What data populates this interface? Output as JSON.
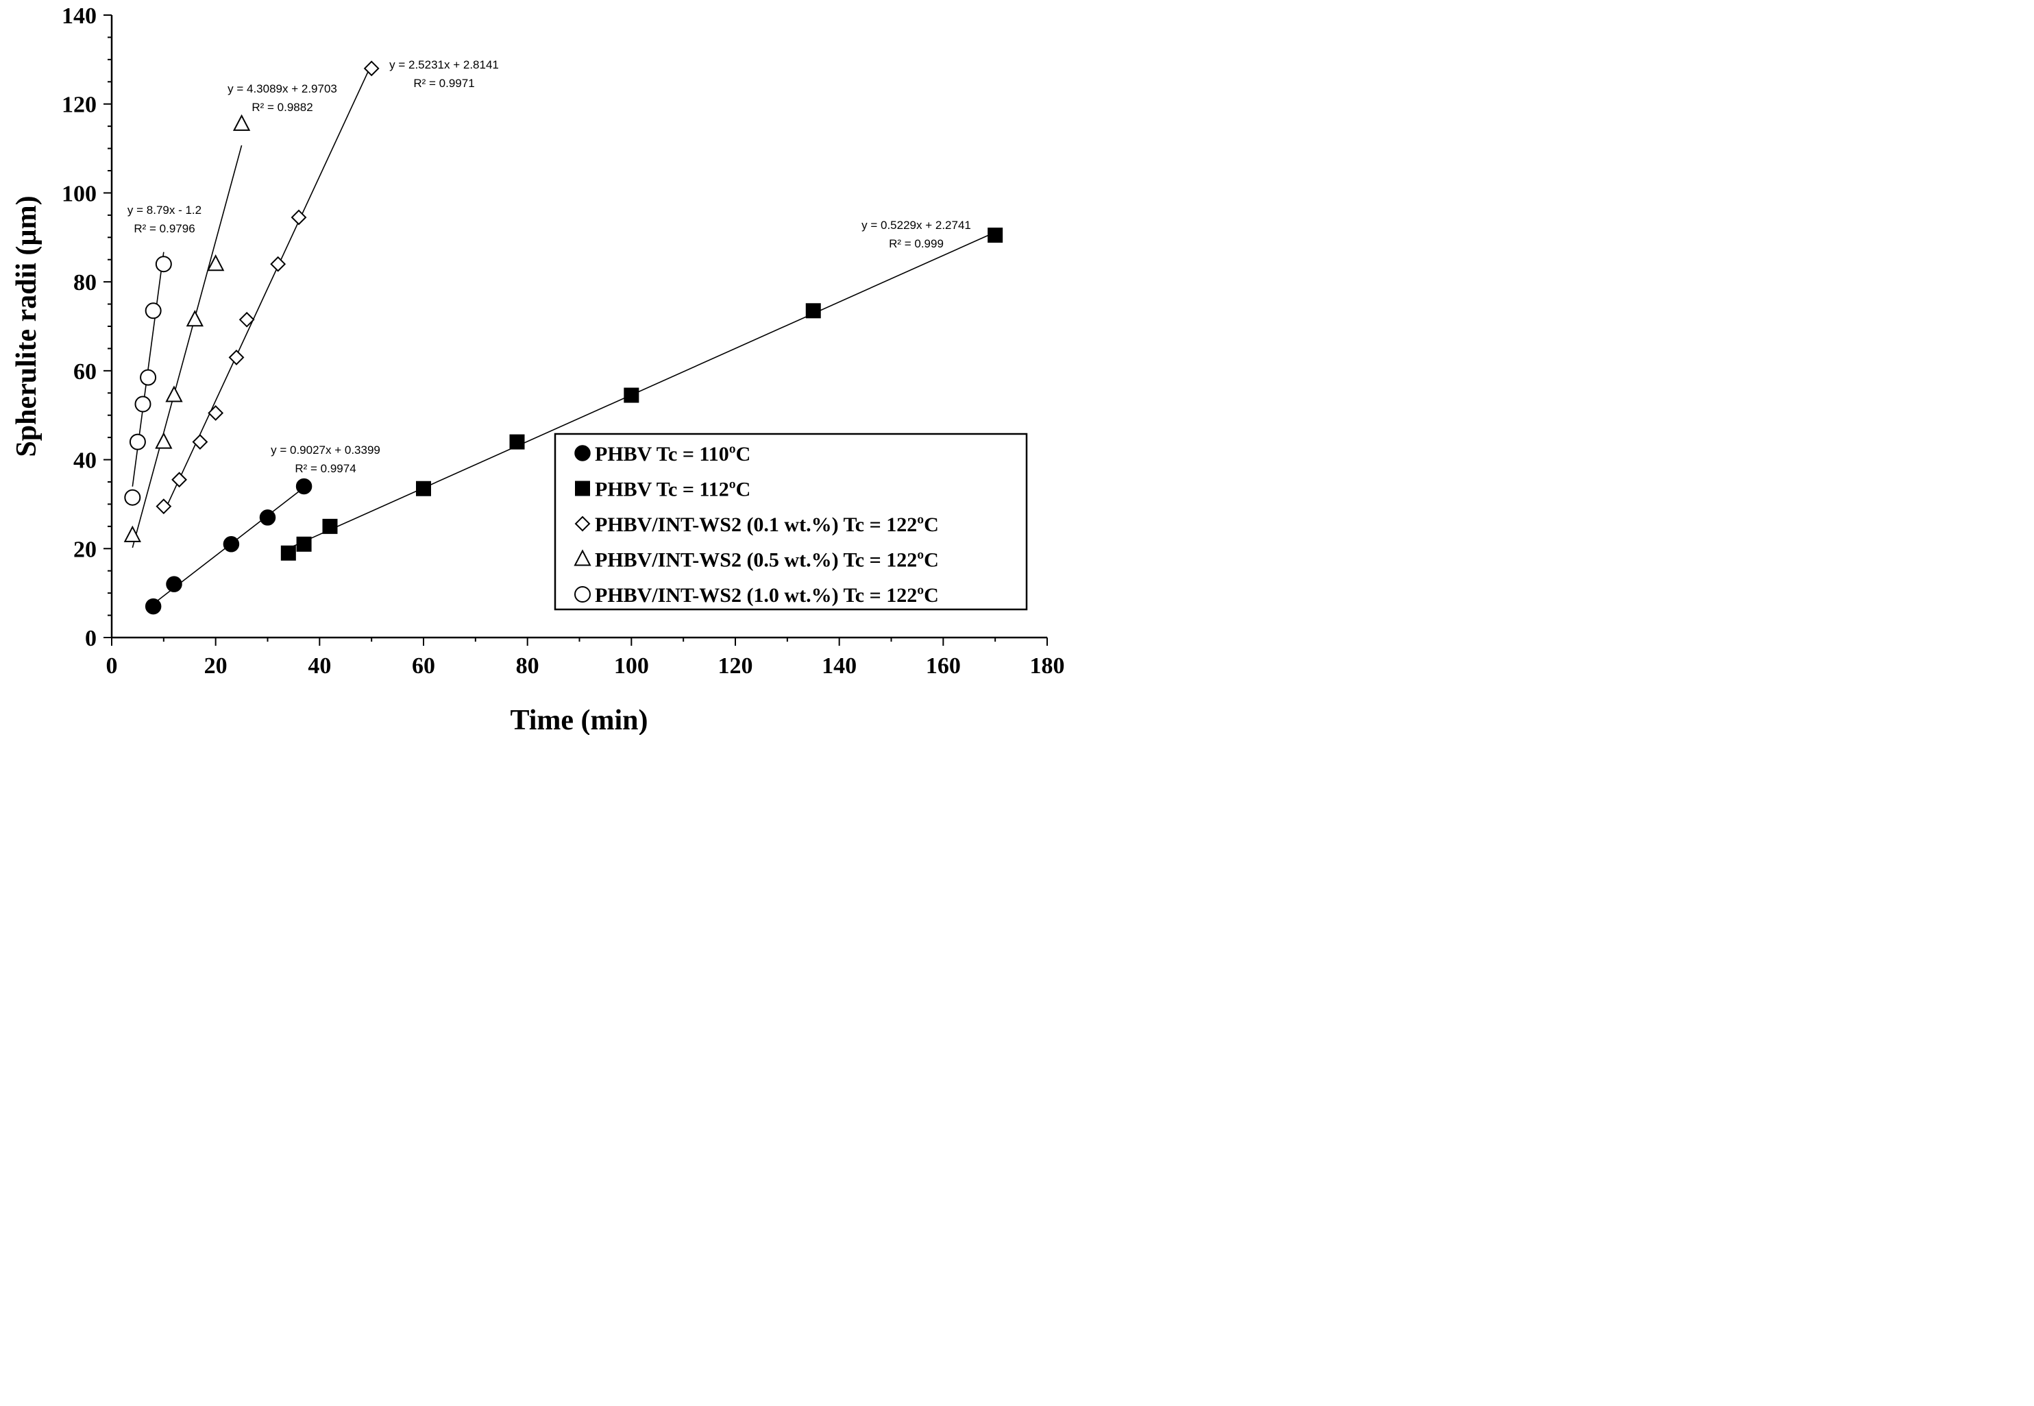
{
  "chart_data": {
    "type": "scatter",
    "xlabel": "Time (min)",
    "ylabel": "Spherulite radii (µm)",
    "xlim": [
      0,
      180
    ],
    "ylim": [
      0,
      140
    ],
    "x_major_ticks": [
      0,
      20,
      40,
      60,
      80,
      100,
      120,
      140,
      160,
      180
    ],
    "x_tick_labels": [
      "0",
      "20",
      "40",
      "60",
      "80",
      "100",
      "120",
      "140",
      "160",
      "180"
    ],
    "y_major_ticks": [
      0,
      20,
      40,
      60,
      80,
      100,
      120,
      140
    ],
    "y_tick_labels": [
      "0",
      "20",
      "40",
      "60",
      "80",
      "100",
      "120",
      "140"
    ],
    "x_minor_step": 10,
    "y_minor_step": 5,
    "grid": false,
    "legend_position": "bottom-right",
    "series": [
      {
        "name": "PHBV Tc = 110ºC",
        "marker": "filled-circle",
        "x": [
          8,
          12,
          23,
          30,
          37
        ],
        "y": [
          7,
          12,
          21,
          27,
          34
        ],
        "fit": {
          "slope": 0.9027,
          "intercept": 0.3399,
          "x_range": [
            8,
            37
          ],
          "equation": "y = 0.9027x + 0.3399",
          "r2": "R² = 0.9974"
        }
      },
      {
        "name": "PHBV Tc = 112ºC",
        "marker": "filled-square",
        "x": [
          34,
          37,
          42,
          60,
          78,
          100,
          135,
          170
        ],
        "y": [
          19,
          21,
          25,
          33.5,
          44,
          54.5,
          73.5,
          90.5
        ],
        "fit": {
          "slope": 0.5229,
          "intercept": 2.2741,
          "x_range": [
            34,
            170
          ],
          "equation": "y = 0.5229x + 2.2741",
          "r2": "R² = 0.999"
        }
      },
      {
        "name": "PHBV/INT-WS2 (0.1 wt.%) Tc = 122ºC",
        "marker": "open-diamond",
        "x": [
          10,
          13,
          17,
          20,
          24,
          26,
          32,
          36,
          50
        ],
        "y": [
          29.5,
          35.5,
          44,
          50.5,
          63,
          71.5,
          84,
          94.5,
          128
        ],
        "fit": {
          "slope": 2.5231,
          "intercept": 2.8141,
          "x_range": [
            10,
            50
          ],
          "equation": "y = 2.5231x + 2.8141",
          "r2": "R² = 0.9971"
        }
      },
      {
        "name": "PHBV/INT-WS2 (0.5 wt.%) Tc = 122ºC",
        "marker": "open-triangle",
        "x": [
          4,
          10,
          12,
          16,
          20,
          25
        ],
        "y": [
          23,
          44,
          54.5,
          71.5,
          84,
          115.5
        ],
        "fit": {
          "slope": 4.3089,
          "intercept": 2.9703,
          "x_range": [
            4,
            25
          ],
          "equation": "y = 4.3089x + 2.9703",
          "r2": "R² = 0.9882"
        }
      },
      {
        "name": "PHBV/INT-WS2 (1.0 wt.%) Tc = 122ºC",
        "marker": "open-circle",
        "x": [
          4,
          5,
          6,
          7,
          8,
          10
        ],
        "y": [
          31.5,
          44,
          52.5,
          58.5,
          73.5,
          84
        ],
        "fit": {
          "slope": 8.79,
          "intercept": -1.2,
          "x_range": [
            4,
            10
          ],
          "equation": "y = 8.79x - 1.2",
          "r2": "R² = 0.9796"
        }
      }
    ]
  }
}
